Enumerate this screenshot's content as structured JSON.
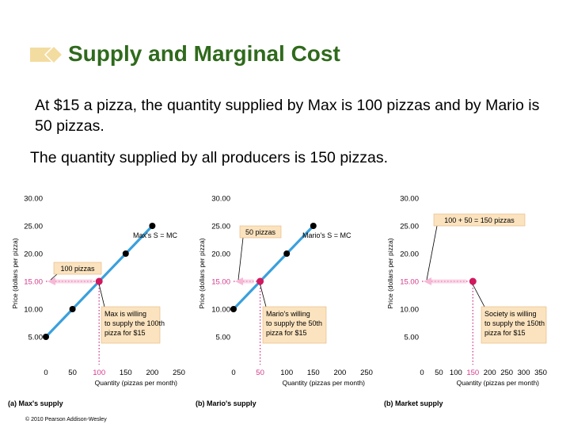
{
  "title": "Supply and Marginal Cost",
  "paragraph1": "At $15 a pizza, the quantity supplied by Max is 100 pizzas and by Mario is 50 pizzas.",
  "paragraph2": "The quantity supplied by all producers is 150 pizzas.",
  "footer": "© 2010 Pearson Addison-Wesley",
  "colors": {
    "title": "#2f6a1c",
    "supply_line": "#3aa0dc",
    "dotted_line": "#d23a8a",
    "price_label": "#d23a8a",
    "callout_fill": "#fbe3bf",
    "point": "#000000",
    "highlight_point": "#d2185f"
  },
  "chart_data": [
    {
      "type": "line",
      "panel_label": "(a) Max's supply",
      "series_label": "Max's S = MC",
      "xlabel": "Quantity (pizzas per month)",
      "ylabel": "Price (dollars per pizza)",
      "xlim": [
        0,
        250
      ],
      "ylim": [
        0,
        30
      ],
      "x_ticks": [
        "0",
        "50",
        "100",
        "150",
        "200",
        "250"
      ],
      "y_ticks": [
        "5.00",
        "10.00",
        "15.00",
        "20.00",
        "25.00",
        "30.00"
      ],
      "series": [
        {
          "x": [
            0,
            50,
            100,
            150,
            200
          ],
          "y": [
            5,
            10,
            15,
            20,
            25
          ]
        }
      ],
      "highlight": {
        "x": 100,
        "y": 15
      },
      "quantity_callout": "100 pizzas",
      "note_lines": [
        "Max is willing",
        "to supply the 100th",
        "pizza for $15"
      ]
    },
    {
      "type": "line",
      "panel_label": "(b) Mario's supply",
      "series_label": "Mario's S = MC",
      "xlabel": "Quantity (pizzas per month)",
      "ylabel": "Price (dollars per pizza)",
      "xlim": [
        0,
        250
      ],
      "ylim": [
        0,
        30
      ],
      "x_ticks": [
        "0",
        "50",
        "100",
        "150",
        "200",
        "250"
      ],
      "y_ticks": [
        "5.00",
        "10.00",
        "15.00",
        "20.00",
        "25.00",
        "30.00"
      ],
      "series": [
        {
          "x": [
            0,
            50,
            100,
            150
          ],
          "y": [
            10,
            15,
            20,
            25
          ]
        }
      ],
      "highlight": {
        "x": 50,
        "y": 15
      },
      "quantity_callout": "50 pizzas",
      "note_lines": [
        "Mario's willing",
        "to supply the 50th",
        "pizza for $15"
      ]
    },
    {
      "type": "line",
      "panel_label": "(b) Market supply",
      "series_label": "",
      "xlabel": "Quantity (pizzas per month)",
      "ylabel": "Price (dollars per pizza)",
      "xlim": [
        0,
        350
      ],
      "ylim": [
        0,
        30
      ],
      "x_ticks": [
        "0",
        "50",
        "100",
        "150",
        "200",
        "250",
        "300",
        "350"
      ],
      "y_ticks": [
        "5.00",
        "10.00",
        "15.00",
        "20.00",
        "25.00",
        "30.00"
      ],
      "series": [],
      "highlight": {
        "x": 150,
        "y": 15
      },
      "quantity_callout": "100 + 50 = 150 pizzas",
      "note_lines": [
        "Society is willing",
        "to supply the 150th",
        "pizza for $15"
      ]
    }
  ]
}
